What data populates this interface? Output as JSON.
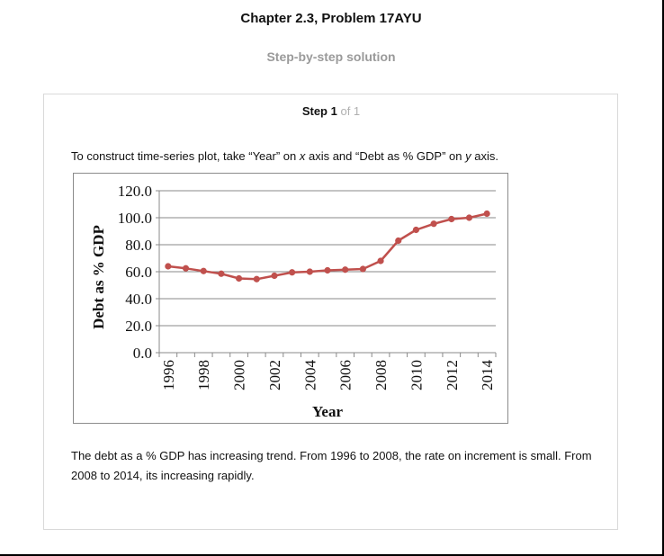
{
  "header": {
    "chapter_title": "Chapter 2.3, Problem 17AYU",
    "solution_title": "Step-by-step solution"
  },
  "step": {
    "label": "Step 1",
    "count": "of 1"
  },
  "intro": {
    "part1": "To construct time-series plot, take “Year” on ",
    "x_var": "x",
    "part2": " axis and “Debt as % GDP” on ",
    "y_var": "y",
    "part3": " axis."
  },
  "conclusion": "The debt as a % GDP has increasing trend. From 1996 to 2008, the rate on increment is small. From 2008 to 2014, its increasing rapidly.",
  "chart_data": {
    "type": "line",
    "x": [
      1996,
      1997,
      1998,
      1999,
      2000,
      2001,
      2002,
      2003,
      2004,
      2005,
      2006,
      2007,
      2008,
      2009,
      2010,
      2011,
      2012,
      2013,
      2014
    ],
    "series": [
      {
        "values": [
          64.0,
          62.5,
          60.5,
          58.5,
          55.0,
          54.5,
          57.0,
          59.5,
          60.0,
          61.0,
          61.5,
          62.0,
          68.0,
          83.0,
          91.0,
          95.5,
          99.0,
          100.0,
          103.0
        ]
      }
    ],
    "xlabel": "Year",
    "ylabel": "Debt as % GDP",
    "ylim": [
      0,
      120
    ],
    "yticks": [
      "0.0",
      "20.0",
      "40.0",
      "60.0",
      "80.0",
      "100.0",
      "120.0"
    ],
    "xticks": [
      "1996",
      "1998",
      "2000",
      "2002",
      "2004",
      "2006",
      "2008",
      "2010",
      "2012",
      "2014"
    ],
    "grid": true,
    "color": "#c0504d"
  }
}
